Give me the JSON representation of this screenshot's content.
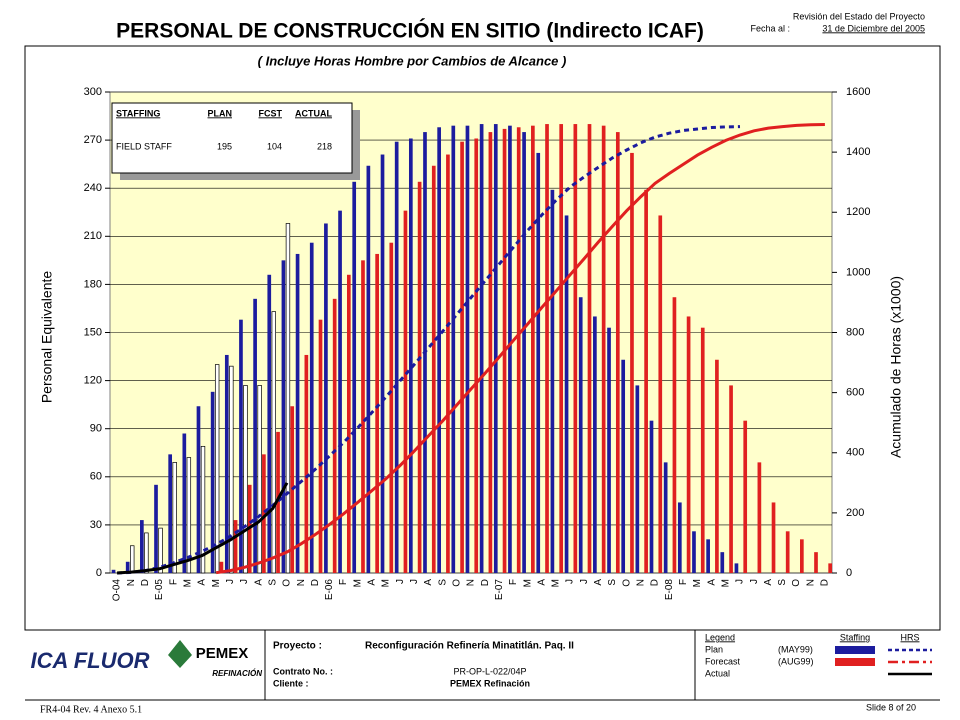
{
  "header": {
    "review": "Revisión del Estado del Proyecto",
    "date_label": "Fecha al :",
    "date": "31 de Diciembre del 2005"
  },
  "chart_data": {
    "type": "bar",
    "title": "PERSONAL DE CONSTRUCCIÓN EN SITIO (Indirecto ICAF)",
    "subtitle": "( Incluye Horas Hombre por Cambios de Alcance )",
    "y_label": "Personal Equivalente",
    "y2_label": "Acumulado de Horas (x1000)",
    "categories": [
      "O-04",
      "N",
      "D",
      "E-05",
      "F",
      "M",
      "A",
      "M",
      "J",
      "J",
      "A",
      "S",
      "O",
      "N",
      "D",
      "E-06",
      "F",
      "M",
      "A",
      "M",
      "J",
      "J",
      "A",
      "S",
      "O",
      "N",
      "D",
      "E-07",
      "F",
      "M",
      "A",
      "M",
      "J",
      "J",
      "A",
      "S",
      "O",
      "N",
      "D",
      "E-08",
      "F",
      "M",
      "A",
      "M",
      "J",
      "J",
      "A",
      "S",
      "O",
      "N",
      "D"
    ],
    "ylim": [
      0,
      300
    ],
    "yticks": [
      0,
      30,
      60,
      90,
      120,
      150,
      180,
      210,
      240,
      270,
      300
    ],
    "y2lim": [
      0,
      1600
    ],
    "y2ticks": [
      0,
      200,
      400,
      600,
      800,
      1000,
      1200,
      1400,
      1600
    ],
    "grid": true,
    "series": [
      {
        "name": "Plan",
        "legend_note": "(MAY99)",
        "color": "#1c1c9e",
        "values": [
          2,
          7,
          33,
          55,
          74,
          87,
          104,
          113,
          136,
          158,
          171,
          186,
          195,
          199,
          206,
          218,
          226,
          244,
          254,
          261,
          269,
          271,
          275,
          278,
          279,
          279,
          280,
          280,
          279,
          275,
          262,
          239,
          223,
          172,
          160,
          153,
          133,
          117,
          95,
          69,
          44,
          26,
          21,
          13,
          6,
          null,
          null,
          null,
          null,
          null,
          null
        ]
      },
      {
        "name": "Forecast",
        "legend_note": "(AUG99)",
        "color": "#e02020",
        "values": [
          null,
          null,
          null,
          null,
          null,
          null,
          null,
          7,
          33,
          55,
          74,
          88,
          104,
          136,
          158,
          171,
          186,
          195,
          199,
          206,
          226,
          244,
          254,
          261,
          269,
          271,
          275,
          277,
          278,
          279,
          280,
          280,
          280,
          280,
          279,
          275,
          262,
          239,
          223,
          172,
          160,
          153,
          133,
          117,
          95,
          69,
          44,
          26,
          21,
          13,
          6
        ]
      },
      {
        "name": "Actual",
        "color": "#ffffff",
        "values": [
          null,
          17,
          25,
          28,
          69,
          72,
          79,
          130,
          129,
          117,
          117,
          163,
          218,
          null,
          null,
          null,
          null,
          null,
          null,
          null,
          null,
          null,
          null,
          null,
          null,
          null,
          null,
          null,
          null,
          null,
          null,
          null,
          null,
          null,
          null,
          null,
          null,
          null,
          null,
          null,
          null,
          null,
          null,
          null,
          null,
          null,
          null,
          null,
          null,
          null,
          null
        ]
      },
      {
        "axis": "y2",
        "color": "#1c1c9e",
        "dash": true,
        "values": [
          0,
          2,
          8,
          19,
          34,
          52,
          72,
          95,
          122,
          154,
          188,
          225,
          264,
          304,
          345,
          389,
          434,
          483,
          534,
          586,
          640,
          694,
          749,
          804,
          860,
          916,
          972,
          1028,
          1084,
          1139,
          1191,
          1239,
          1284,
          1318,
          1350,
          1381,
          1407,
          1431,
          1450,
          1463,
          1472,
          1477,
          1482,
          1484,
          1485,
          null,
          null,
          null,
          null,
          null,
          null
        ]
      },
      {
        "axis": "y2",
        "color": "#e02020",
        "values": [
          null,
          null,
          null,
          null,
          null,
          null,
          null,
          1,
          8,
          19,
          33,
          50,
          70,
          97,
          128,
          161,
          197,
          235,
          274,
          314,
          358,
          406,
          456,
          506,
          559,
          612,
          665,
          719,
          774,
          828,
          883,
          937,
          992,
          1046,
          1101,
          1154,
          1205,
          1252,
          1296,
          1329,
          1360,
          1390,
          1416,
          1439,
          1457,
          1471,
          1480,
          1485,
          1489,
          1491,
          1492
        ]
      },
      {
        "axis": "y2",
        "color": "#000000",
        "values": [
          0,
          3,
          8,
          14,
          28,
          42,
          58,
          84,
          110,
          140,
          170,
          215,
          300,
          null,
          null,
          null,
          null,
          null,
          null,
          null,
          null,
          null,
          null,
          null,
          null,
          null,
          null,
          null,
          null,
          null,
          null,
          null,
          null,
          null,
          null,
          null,
          null,
          null,
          null,
          null,
          null,
          null,
          null,
          null,
          null,
          null,
          null,
          null,
          null,
          null,
          null
        ]
      }
    ],
    "inset_table": {
      "headers": [
        "STAFFING",
        "PLAN",
        "FCST",
        "ACTUAL"
      ],
      "rows": [
        [
          "FIELD STAFF",
          195,
          104,
          218
        ]
      ]
    },
    "legend": {
      "title": "Legend",
      "columns": [
        "Staffing",
        "HRS"
      ]
    }
  },
  "footer": {
    "logo": "ICA FLUOR",
    "client_logo": "PEMEX",
    "client_sub": "REFINACIÓN",
    "project_label": "Proyecto :",
    "project": "Reconfiguración Refinería Minatitlán.  Paq. II",
    "contract_label": "Contrato No. :",
    "contract": "PR-OP-L-022/04P",
    "client_label": "Cliente :",
    "client": "PEMEX Refinación",
    "form": "FR4-04 Rev. 4  Anexo 5.1",
    "slide": "Slide 8 of 20"
  }
}
